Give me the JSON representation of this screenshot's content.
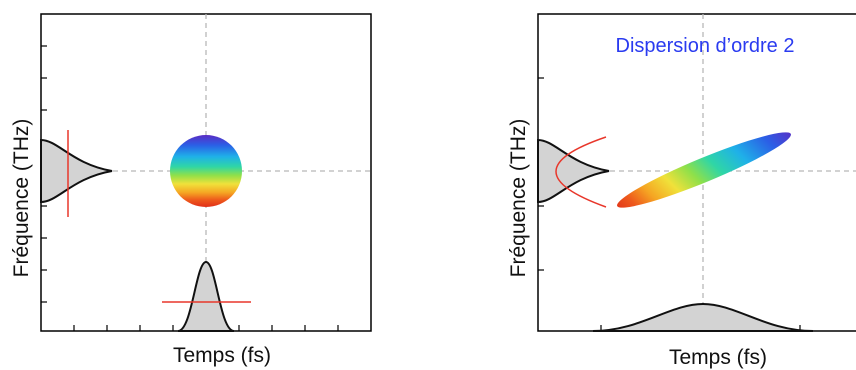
{
  "panels": [
    {
      "id": "left",
      "xlabel": "Temps (fs)",
      "ylabel": "Fréquence (THz)",
      "title": ""
    },
    {
      "id": "right",
      "xlabel": "Temps (fs)",
      "ylabel": "Fréquence (THz)",
      "title": "Dispersion d’ordre 2"
    }
  ],
  "colors": {
    "frame": "#000000",
    "guide": "#b8b8b8",
    "pulse_fill": "#d3d3d3",
    "chirp_line": "#e8372b",
    "title": "#2a3bf0",
    "spectrum": [
      "#5a2cc4",
      "#2b5fe6",
      "#1fb1e8",
      "#2fd6a6",
      "#8fe04a",
      "#f0e13a",
      "#f5a623",
      "#ee5a1c",
      "#e0301a"
    ]
  }
}
